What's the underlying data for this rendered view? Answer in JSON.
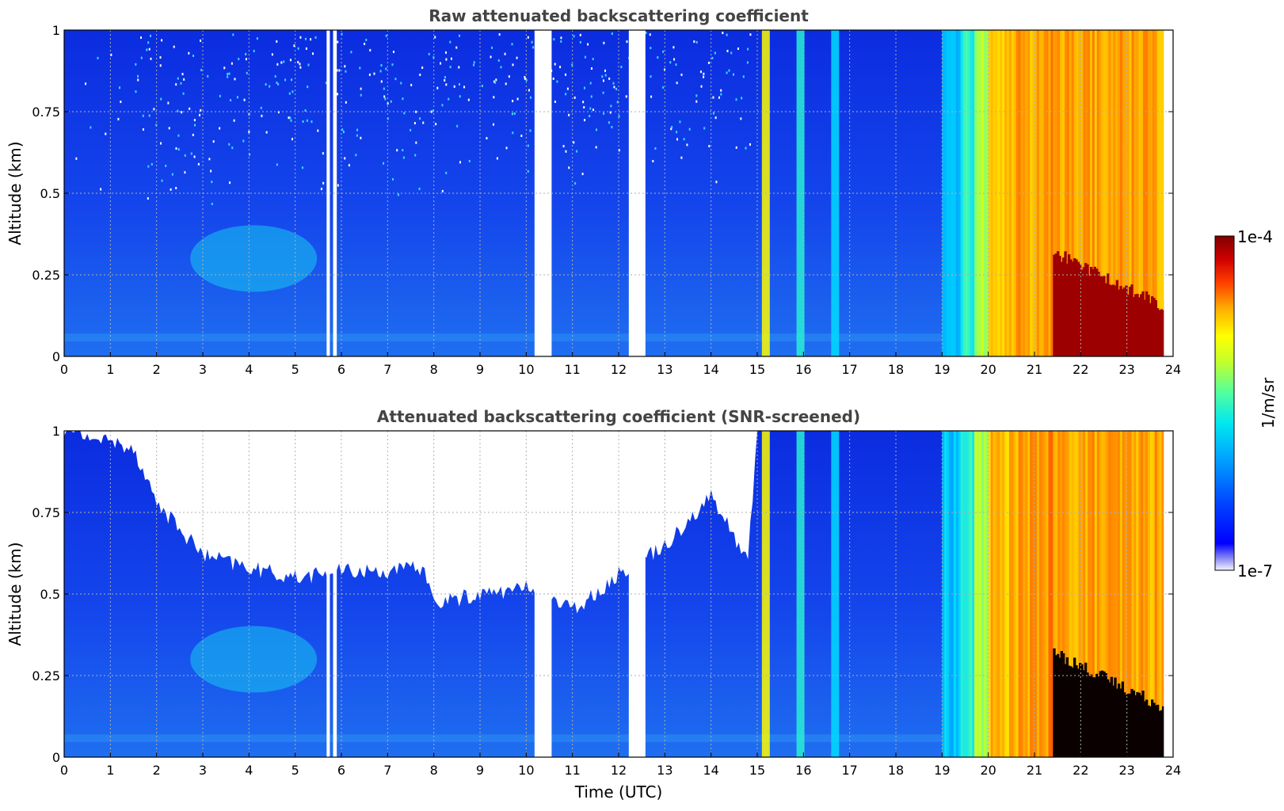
{
  "chart_data": [
    {
      "type": "heatmap",
      "title": "Raw attenuated backscattering coefficient",
      "xlabel": "",
      "ylabel": "Altitude (km)",
      "xlim": [
        0,
        24
      ],
      "ylim": [
        0,
        1
      ],
      "x_ticks": [
        "0",
        "1",
        "2",
        "3",
        "4",
        "5",
        "6",
        "7",
        "8",
        "9",
        "10",
        "11",
        "12",
        "13",
        "14",
        "15",
        "16",
        "17",
        "18",
        "19",
        "20",
        "21",
        "22",
        "23",
        "24"
      ],
      "y_ticks": [
        "0",
        "0.25",
        "0.5",
        "0.75",
        "1"
      ],
      "grid": true,
      "data_gaps_utc": [
        [
          5.68,
          5.75
        ],
        [
          5.82,
          5.9
        ],
        [
          10.18,
          10.55
        ],
        [
          12.22,
          12.58
        ]
      ],
      "regimes": [
        {
          "start_utc": 0,
          "end_utc": 15.0,
          "description_level": "low (~1e-6)"
        },
        {
          "start_utc": 15.0,
          "end_utc": 19.0,
          "description_level": "low with moderate streaks near 15.1, 15.9, 16.6"
        },
        {
          "start_utc": 19.0,
          "end_utc": 20.0,
          "description_level": "moderate (~1e-5)"
        },
        {
          "start_utc": 20.0,
          "end_utc": 21.4,
          "description_level": "high (~3e-5)"
        },
        {
          "start_utc": 21.4,
          "end_utc": 23.8,
          "description_level": "very high (~1e-4) below 0.3 km"
        }
      ]
    },
    {
      "type": "heatmap",
      "title": "Attenuated backscattering coefficient (SNR-screened)",
      "xlabel": "Time (UTC)",
      "ylabel": "Altitude (km)",
      "xlim": [
        0,
        24
      ],
      "ylim": [
        0,
        1
      ],
      "x_ticks": [
        "0",
        "1",
        "2",
        "3",
        "4",
        "5",
        "6",
        "7",
        "8",
        "9",
        "10",
        "11",
        "12",
        "13",
        "14",
        "15",
        "16",
        "17",
        "18",
        "19",
        "20",
        "21",
        "22",
        "23",
        "24"
      ],
      "y_ticks": [
        "0",
        "0.25",
        "0.5",
        "0.75",
        "1"
      ],
      "grid": true,
      "screened_top_km": [
        {
          "utc": 0,
          "alt": 1.0
        },
        {
          "utc": 1.5,
          "alt": 0.95
        },
        {
          "utc": 2.0,
          "alt": 0.78
        },
        {
          "utc": 3.0,
          "alt": 0.62
        },
        {
          "utc": 4.0,
          "alt": 0.58
        },
        {
          "utc": 5.0,
          "alt": 0.55
        },
        {
          "utc": 6.0,
          "alt": 0.57
        },
        {
          "utc": 7.0,
          "alt": 0.57
        },
        {
          "utc": 7.8,
          "alt": 0.58
        },
        {
          "utc": 8.0,
          "alt": 0.47
        },
        {
          "utc": 9.0,
          "alt": 0.5
        },
        {
          "utc": 10.1,
          "alt": 0.52
        },
        {
          "utc": 11.0,
          "alt": 0.45
        },
        {
          "utc": 12.2,
          "alt": 0.58
        },
        {
          "utc": 13.0,
          "alt": 0.65
        },
        {
          "utc": 14.0,
          "alt": 0.8
        },
        {
          "utc": 14.8,
          "alt": 0.6
        },
        {
          "utc": 15.0,
          "alt": 1.0
        },
        {
          "utc": 24,
          "alt": 1.0
        }
      ]
    }
  ],
  "colorbar": {
    "label": "1/m/sr",
    "min_label": "1e-7",
    "max_label": "1e-4",
    "scale": "log",
    "colormap": "jet"
  }
}
